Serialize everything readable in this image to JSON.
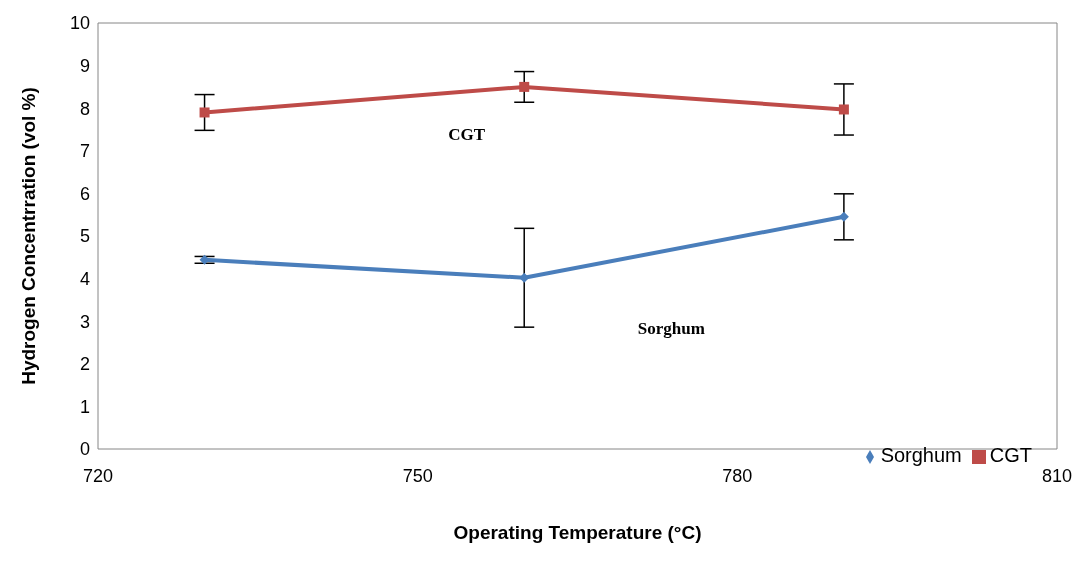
{
  "chart_data": {
    "type": "line",
    "xlabel": "Operating Temperature (°C)",
    "ylabel": "Hydrogen Concentrration (vol %)",
    "x": [
      730,
      760,
      790
    ],
    "series": [
      {
        "name": "Sorghum",
        "color": "#4a7ebb",
        "marker": "diamond",
        "values": [
          4.44,
          4.02,
          5.45
        ],
        "errors": [
          0.08,
          1.16,
          0.54
        ]
      },
      {
        "name": "CGT",
        "color": "#be4b48",
        "marker": "square",
        "values": [
          7.9,
          8.5,
          7.97
        ],
        "errors": [
          0.42,
          0.36,
          0.6
        ]
      }
    ],
    "xlim": [
      720,
      810
    ],
    "xticks": [
      720,
      750,
      780,
      810
    ],
    "ylim": [
      0,
      10
    ],
    "yticks": [
      0,
      1,
      2,
      3,
      4,
      5,
      6,
      7,
      8,
      9,
      10
    ],
    "grid": false,
    "legend": "bottom right",
    "annotations": [
      "CGT",
      "Sorghum"
    ]
  }
}
